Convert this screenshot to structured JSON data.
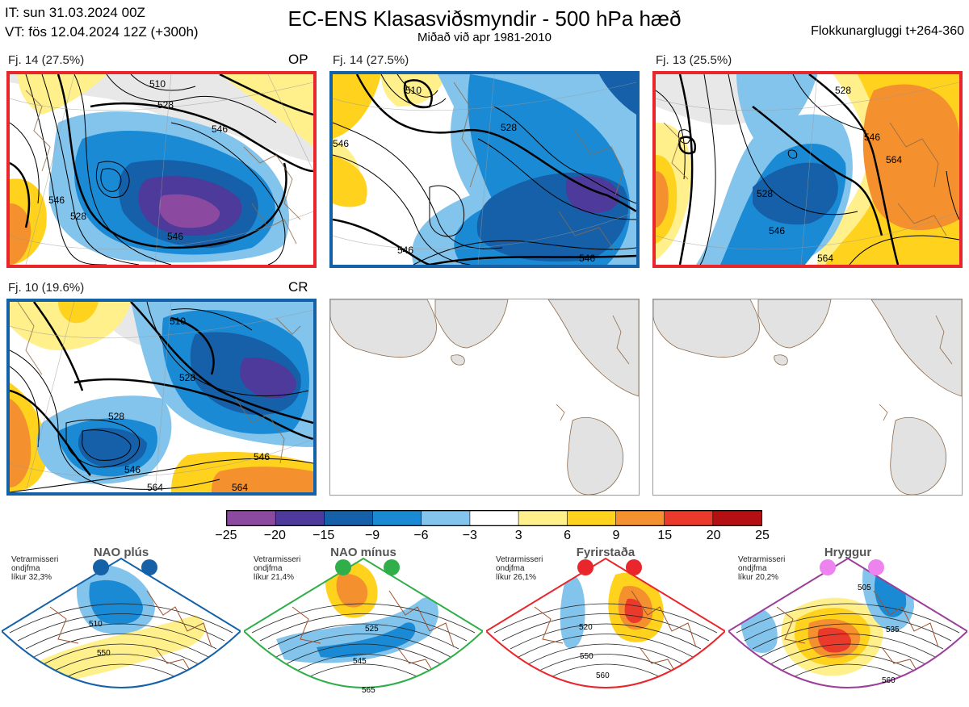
{
  "header": {
    "it_line": "IT: sun 31.03.2024 00Z",
    "vt_line": "VT: fös 12.04.2024 12Z  (+300h)",
    "title": "EC-ENS Klasasviðsmyndir - 500 hPa hæð",
    "subtitle": "Miðað við apr 1981-2010",
    "window": "Flokkunargluggi t+264-360"
  },
  "panels": [
    {
      "label": "Fj. 14 (27.5%)",
      "tag": "OP",
      "border": "#e8262b"
    },
    {
      "label": "Fj. 14 (27.5%)",
      "tag": "",
      "border": "#1561a8"
    },
    {
      "label": "Fj. 13 (25.5%)",
      "tag": "",
      "border": "#e8262b"
    },
    {
      "label": "Fj. 10 (19.6%)",
      "tag": "CR",
      "border": "#1561a8"
    }
  ],
  "contour_labels": {
    "p1": [
      "510",
      "528",
      "546",
      "528",
      "546",
      "546"
    ],
    "p2": [
      "510",
      "528",
      "546",
      "546",
      "546"
    ],
    "p3": [
      "528",
      "546",
      "546",
      "564",
      "564",
      "528"
    ],
    "p4": [
      "510",
      "528",
      "528",
      "546",
      "546",
      "564",
      "564"
    ]
  },
  "chart_data": {
    "type": "heatmap",
    "title": "EC-ENS Klasasviðsmyndir - 500 hPa hæð",
    "subtitle": "Miðað við apr 1981-2010",
    "colorbar": {
      "ticks": [
        "−25",
        "−20",
        "−15",
        "−9",
        "−6",
        "−3",
        "3",
        "6",
        "9",
        "15",
        "20",
        "25"
      ],
      "colors": [
        "#8b4aa0",
        "#4d3a9a",
        "#1560a8",
        "#1b8ad4",
        "#83c4ec",
        "#ffffff",
        "#fff08c",
        "#ffd21e",
        "#f5902e",
        "#ea3a2c",
        "#b41014"
      ]
    },
    "clusters": [
      {
        "cluster": "Fj. 14",
        "percent": 27.5,
        "tag": "OP"
      },
      {
        "cluster": "Fj. 14",
        "percent": 27.5
      },
      {
        "cluster": "Fj. 13",
        "percent": 25.5
      },
      {
        "cluster": "Fj. 10",
        "percent": 19.6,
        "tag": "CR"
      }
    ]
  },
  "regimes": [
    {
      "name": "NAO plús",
      "note": [
        "Vetrarmisseri",
        "ondjfma",
        "líkur 32,3%"
      ],
      "color": "#1561a8",
      "labels": [
        "510",
        "550"
      ]
    },
    {
      "name": "NAO mínus",
      "note": [
        "Vetrarmisseri",
        "ondjfma",
        "líkur 21,4%"
      ],
      "color": "#2fae49",
      "labels": [
        "525",
        "545",
        "565"
      ]
    },
    {
      "name": "Fyrirstaða",
      "note": [
        "Vetrarmisseri",
        "ondjfma",
        "líkur 26,1%"
      ],
      "color": "#e8262b",
      "labels": [
        "520",
        "550",
        "560"
      ]
    },
    {
      "name": "Hryggur",
      "note": [
        "Vetrarmisseri",
        "ondjfma",
        "líkur 20,2%"
      ],
      "color": "#9b3f9b",
      "dot": "#ee82ee",
      "labels": [
        "505",
        "535",
        "560"
      ]
    }
  ]
}
